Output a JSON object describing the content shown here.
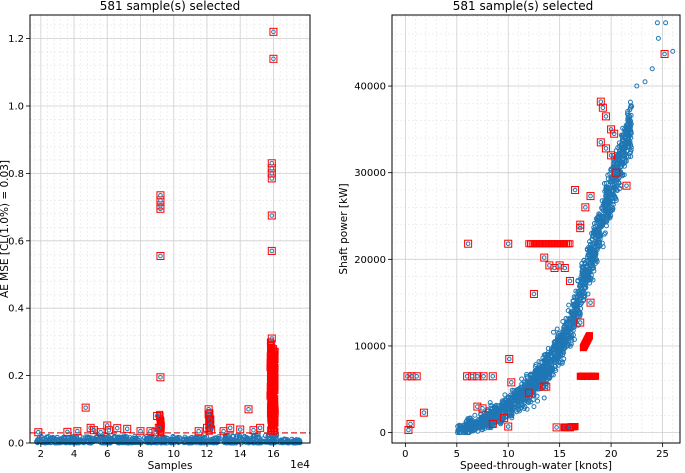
{
  "chart_data": [
    {
      "type": "scatter",
      "title": "581 sample(s) selected",
      "xlabel": "Samples",
      "ylabel": "AE MSE [CL(1.0%) = 0.03]",
      "x_offset_label": "1e4",
      "x_scale": 10000,
      "xlim": [
        1.35,
        18.2
      ],
      "ylim": [
        0.0,
        1.27
      ],
      "xticks": [
        2,
        4,
        6,
        8,
        10,
        12,
        14,
        16
      ],
      "yticks": [
        0.0,
        0.2,
        0.4,
        0.6,
        0.8,
        1.0,
        1.2
      ],
      "grid": true,
      "threshold": {
        "value": 0.03,
        "color": "#d62728",
        "style": "dashed"
      },
      "series": [
        {
          "role": "all-samples",
          "color": "#1f77b4",
          "marker": "circle",
          "bands": [
            {
              "x": [
                1.7,
                9.2
              ],
              "y": [
                0.0,
                0.02
              ]
            },
            {
              "x": [
                9.2,
                12.8
              ],
              "y": [
                0.0,
                0.02
              ]
            },
            {
              "x": [
                13.0,
                16.3
              ],
              "y": [
                0.0,
                0.025
              ]
            },
            {
              "x": [
                16.3,
                17.6
              ],
              "y": [
                0.0,
                0.012
              ]
            }
          ]
        },
        {
          "role": "selected",
          "color": "#ff0000",
          "marker": "square",
          "points": [
            [
              1.85,
              0.032
            ],
            [
              3.6,
              0.033
            ],
            [
              4.2,
              0.035
            ],
            [
              4.7,
              0.105
            ],
            [
              5.0,
              0.045
            ],
            [
              5.2,
              0.038
            ],
            [
              5.6,
              0.032
            ],
            [
              6.0,
              0.052
            ],
            [
              6.1,
              0.038
            ],
            [
              6.6,
              0.044
            ],
            [
              7.2,
              0.042
            ],
            [
              8.0,
              0.035
            ],
            [
              8.6,
              0.035
            ],
            [
              8.9,
              0.032
            ],
            [
              9.0,
              0.08
            ],
            [
              9.1,
              0.045
            ],
            [
              9.2,
              0.195
            ],
            [
              9.2,
              0.555
            ],
            [
              9.2,
              0.695
            ],
            [
              9.2,
              0.705
            ],
            [
              9.2,
              0.72
            ],
            [
              9.2,
              0.735
            ],
            [
              11.5,
              0.035
            ],
            [
              12.0,
              0.045
            ],
            [
              12.1,
              0.1
            ],
            [
              12.1,
              0.085
            ],
            [
              12.2,
              0.07
            ],
            [
              12.2,
              0.055
            ],
            [
              12.25,
              0.04
            ],
            [
              13.0,
              0.035
            ],
            [
              13.4,
              0.045
            ],
            [
              14.0,
              0.04
            ],
            [
              14.5,
              0.1
            ],
            [
              14.8,
              0.038
            ],
            [
              15.2,
              0.045
            ],
            [
              15.9,
              0.31
            ],
            [
              15.9,
              0.57
            ],
            [
              15.9,
              0.675
            ],
            [
              15.9,
              0.785
            ],
            [
              15.9,
              0.8
            ],
            [
              15.9,
              0.815
            ],
            [
              15.9,
              0.83
            ],
            [
              16.0,
              1.14
            ],
            [
              16.0,
              1.22
            ]
          ],
          "runs": [
            {
              "x": 9.2,
              "y": [
                0.03,
                0.085
              ]
            },
            {
              "x": 12.15,
              "y": [
                0.035,
                0.09
              ]
            },
            {
              "x": 15.85,
              "y": [
                0.035,
                0.3
              ]
            },
            {
              "x": 16.05,
              "y": [
                0.035,
                0.28
              ]
            }
          ]
        }
      ]
    },
    {
      "type": "scatter",
      "title": "581 sample(s) selected",
      "xlabel": "Speed-through-water [knots]",
      "ylabel": "Shaft power [kW]",
      "xlim": [
        -1.3,
        26.7
      ],
      "ylim": [
        -1200,
        48200
      ],
      "xticks": [
        0,
        5,
        10,
        15,
        20,
        25
      ],
      "yticks": [
        0,
        10000,
        20000,
        30000,
        40000
      ],
      "grid": true,
      "series": [
        {
          "role": "all-samples",
          "color": "#1f77b4",
          "marker": "circle",
          "cloud": {
            "spine": [
              [
                5.0,
                0
              ],
              [
                8,
                1500
              ],
              [
                10,
                3000
              ],
              [
                12,
                5000
              ],
              [
                14,
                8000
              ],
              [
                16,
                12000
              ],
              [
                17,
                16000
              ],
              [
                18,
                20000
              ],
              [
                19,
                24000
              ],
              [
                20,
                28000
              ],
              [
                21,
                32000
              ],
              [
                22,
                35500
              ]
            ],
            "spread_kw": 4500,
            "outliers": [
              [
                5.6,
                600
              ],
              [
                6.2,
                700
              ],
              [
                7.0,
                500
              ],
              [
                7.5,
                900
              ],
              [
                8.5,
                1100
              ],
              [
                9.5,
                1700
              ],
              [
                12.5,
                3000
              ],
              [
                13.5,
                4000
              ],
              [
                22.5,
                40000
              ],
              [
                23.3,
                40500
              ],
              [
                24.0,
                42000
              ],
              [
                24.6,
                45500
              ],
              [
                24.5,
                47300
              ],
              [
                25.3,
                47300
              ],
              [
                26.0,
                44000
              ]
            ]
          }
        },
        {
          "role": "selected",
          "color": "#ff0000",
          "marker": "square",
          "points": [
            [
              0.3,
              300
            ],
            [
              0.5,
              1000
            ],
            [
              1.8,
              2300
            ],
            [
              0.2,
              6500
            ],
            [
              0.6,
              6500
            ],
            [
              1.1,
              6500
            ],
            [
              6.0,
              6500
            ],
            [
              6.5,
              6500
            ],
            [
              7.0,
              6500
            ],
            [
              7.6,
              6500
            ],
            [
              8.5,
              6500
            ],
            [
              6.1,
              21800
            ],
            [
              10.0,
              21800
            ],
            [
              10.1,
              8500
            ],
            [
              10.3,
              5800
            ],
            [
              7.0,
              3000
            ],
            [
              7.5,
              2800
            ],
            [
              8.5,
              1000
            ],
            [
              9.6,
              1700
            ],
            [
              10.0,
              700
            ],
            [
              12.0,
              4600
            ],
            [
              13.5,
              5300
            ],
            [
              13.7,
              5300
            ],
            [
              14.7,
              600
            ],
            [
              15.5,
              600
            ],
            [
              16.0,
              600
            ],
            [
              12.5,
              16000
            ],
            [
              13.5,
              20200
            ],
            [
              14.0,
              19300
            ],
            [
              14.5,
              19000
            ],
            [
              15.0,
              19300
            ],
            [
              15.5,
              19000
            ],
            [
              16.0,
              17500
            ],
            [
              16.5,
              28000
            ],
            [
              17.0,
              24000
            ],
            [
              17.0,
              23600
            ],
            [
              17.0,
              12700
            ],
            [
              18.0,
              15000
            ],
            [
              17.5,
              26000
            ],
            [
              18.0,
              27300
            ],
            [
              19.0,
              38200
            ],
            [
              19.2,
              37500
            ],
            [
              19.5,
              36500
            ],
            [
              19.0,
              33500
            ],
            [
              19.5,
              32800
            ],
            [
              20.0,
              32000
            ],
            [
              20.5,
              30000
            ],
            [
              20.0,
              35000
            ],
            [
              20.3,
              34500
            ],
            [
              21.5,
              28500
            ],
            [
              25.2,
              43700
            ]
          ],
          "runs": [
            {
              "x": [
                12.0,
                16.0
              ],
              "y": 21800
            },
            {
              "x": [
                17.0,
                18.5
              ],
              "y": 6500
            },
            {
              "x": [
                17.3,
                17.9
              ],
              "y": [
                9800,
                11200
              ]
            },
            {
              "x": [
                15.5,
                16.5
              ],
              "y": [
                600,
                700
              ]
            }
          ]
        }
      ]
    }
  ]
}
